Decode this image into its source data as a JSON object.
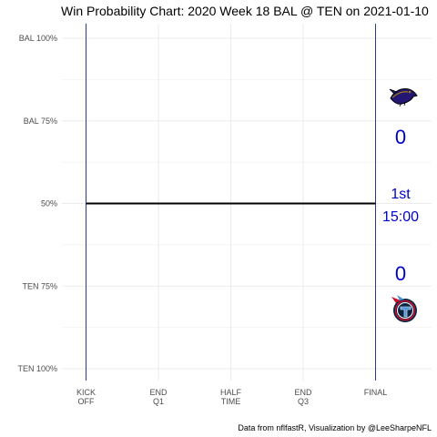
{
  "chart_data": {
    "type": "line",
    "title": "Win Probability Chart: 2020 Week 18 BAL @ TEN on 2021-01-10",
    "xlabel": "",
    "ylabel": "",
    "x_ticks": [
      {
        "value": 0,
        "lines": [
          "KICK",
          "OFF"
        ]
      },
      {
        "value": 15,
        "lines": [
          "END",
          "Q1"
        ]
      },
      {
        "value": 30,
        "lines": [
          "HALF",
          "TIME"
        ]
      },
      {
        "value": 45,
        "lines": [
          "END",
          "Q3"
        ]
      },
      {
        "value": 60,
        "lines": [
          "FINAL"
        ]
      }
    ],
    "y_ticks": [
      {
        "value": 1.0,
        "label": "BAL 100%"
      },
      {
        "value": 0.75,
        "label": "BAL 75%"
      },
      {
        "value": 0.5,
        "label": "50%"
      },
      {
        "value": 0.25,
        "label": "TEN 75%"
      },
      {
        "value": 0.0,
        "label": "TEN 100%"
      }
    ],
    "xlim": [
      0,
      60
    ],
    "ylim": [
      0,
      1
    ],
    "grid": true,
    "vertical_lines": [
      0,
      60
    ],
    "series": [
      {
        "x": [
          0,
          60
        ],
        "y": [
          0.5,
          0.5
        ],
        "color": "#000000"
      }
    ],
    "annotations": {
      "away_score": "0",
      "home_score": "0",
      "quarter": "1st",
      "time": "15:00"
    },
    "caption": "Data from nflfastR, Visualization by @LeeSharpeNFL",
    "colors": {
      "vline": "#2e3a87",
      "text_accent": "#0000cc",
      "grid": "#ebebeb",
      "ravens_purple": "#241773",
      "titans_navy": "#0c2340",
      "titans_blue": "#4b92db",
      "titans_red": "#c8102e"
    },
    "logos": [
      "ravens-logo",
      "titans-logo"
    ]
  }
}
